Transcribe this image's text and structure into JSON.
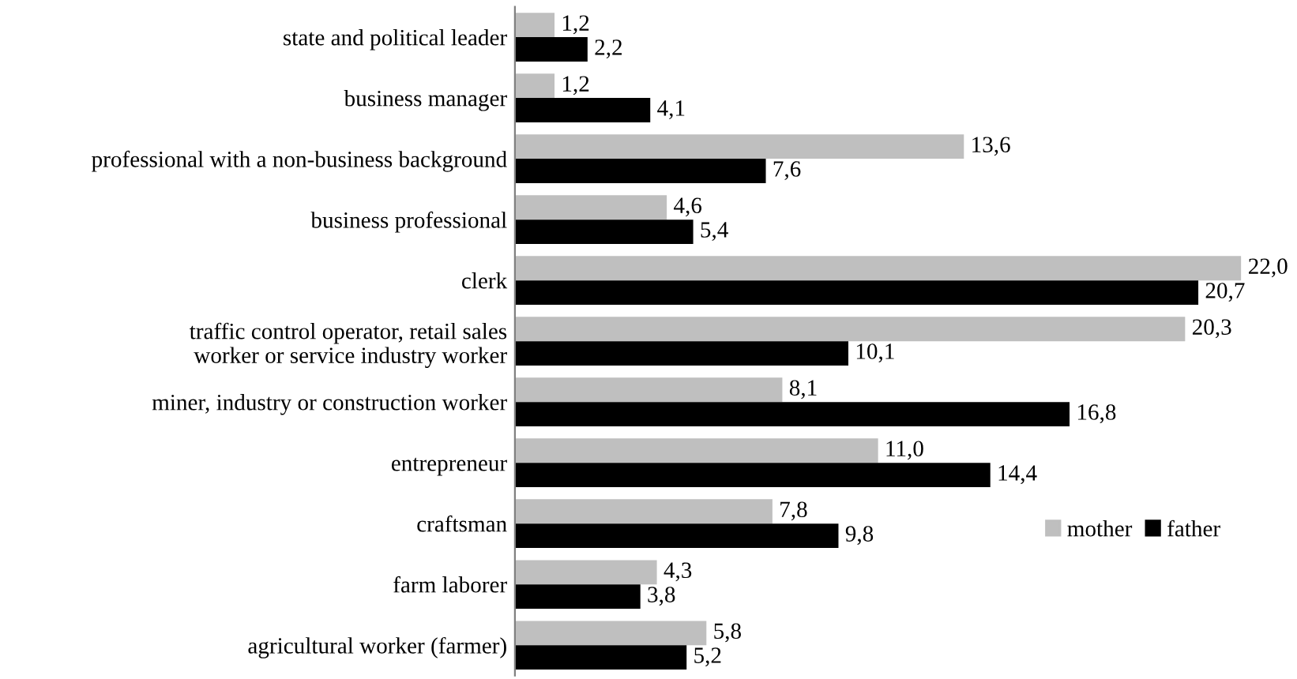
{
  "chart_data": {
    "type": "bar",
    "orientation": "horizontal",
    "categories": [
      "state and political leader",
      "business manager",
      "professional with a non-business background",
      "business professional",
      "clerk",
      "traffic control operator, retail sales\nworker or service industry worker",
      "miner, industry or construction worker",
      "entrepreneur",
      "craftsman",
      "farm laborer",
      "agricultural worker (farmer)"
    ],
    "series": [
      {
        "name": "mother",
        "color": "#bfbfbf",
        "values": [
          1.2,
          1.2,
          13.6,
          4.6,
          22.0,
          20.3,
          8.1,
          11.0,
          7.8,
          4.3,
          5.8
        ],
        "value_labels": [
          "1,2",
          "1,2",
          "13,6",
          "4,6",
          "22,0",
          "20,3",
          "8,1",
          "11,0",
          "7,8",
          "4,3",
          "5,8"
        ]
      },
      {
        "name": "father",
        "color": "#000000",
        "values": [
          2.2,
          4.1,
          7.6,
          5.4,
          20.7,
          10.1,
          16.8,
          14.4,
          9.8,
          3.8,
          5.2
        ],
        "value_labels": [
          "2,2",
          "4,1",
          "7,6",
          "5,4",
          "20,7",
          "10,1",
          "16,8",
          "14,4",
          "9,8",
          "3,8",
          "5,2"
        ]
      }
    ],
    "legend": "bottom right",
    "grid": false
  }
}
